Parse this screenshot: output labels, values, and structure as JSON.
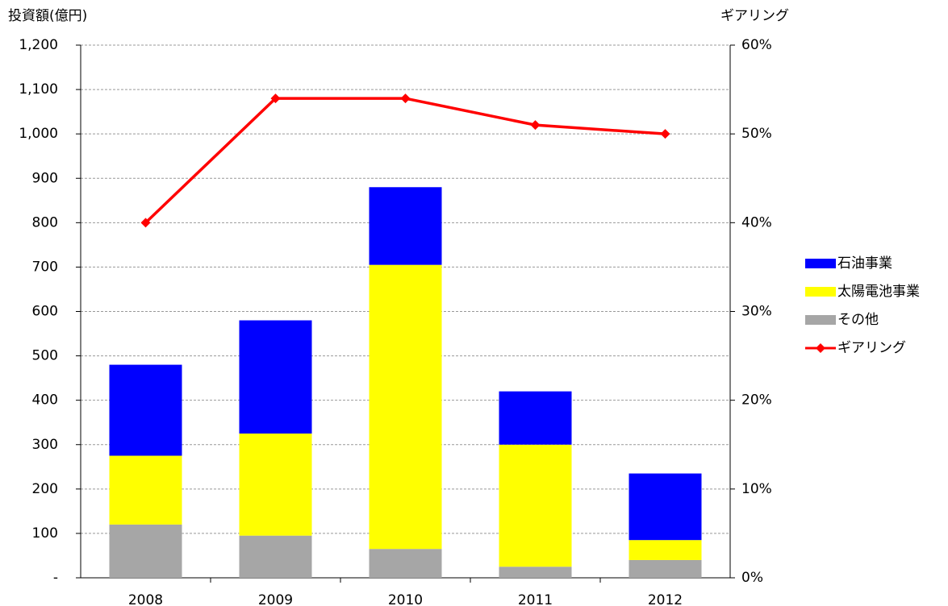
{
  "chart_data": {
    "type": "bar",
    "stacked": true,
    "y_title": "投資額(億円)",
    "y2_title": "ギアリング",
    "categories": [
      "2008",
      "2009",
      "2010",
      "2011",
      "2012"
    ],
    "series": [
      {
        "name": "石油事業",
        "color": "#0000ff",
        "values": [
          205,
          255,
          175,
          120,
          150
        ]
      },
      {
        "name": "太陽電池事業",
        "color": "#ffff00",
        "values": [
          155,
          230,
          640,
          275,
          45
        ]
      },
      {
        "name": "その他",
        "color": "#a6a6a6",
        "values": [
          120,
          95,
          65,
          25,
          40
        ]
      },
      {
        "name": "ギアリング",
        "color": "#ff0000",
        "type": "line",
        "axis": "y2",
        "values": [
          40,
          54,
          54,
          51,
          50
        ]
      }
    ],
    "ylim": [
      0,
      1200
    ],
    "yticks": [
      {
        "value": 0,
        "label": "-"
      },
      100,
      200,
      300,
      400,
      500,
      600,
      700,
      800,
      900,
      {
        "value": 1000,
        "label": "1,000"
      },
      {
        "value": 1100,
        "label": "1,100"
      },
      {
        "value": 1200,
        "label": "1,200"
      }
    ],
    "y2lim": [
      0,
      60
    ],
    "y2ticks": [
      {
        "value": 0,
        "label": "0%"
      },
      {
        "value": 10,
        "label": "10%"
      },
      {
        "value": 20,
        "label": "20%"
      },
      {
        "value": 30,
        "label": "30%"
      },
      {
        "value": 40,
        "label": "40%"
      },
      {
        "value": 50,
        "label": "50%"
      },
      {
        "value": 60,
        "label": "60%"
      }
    ],
    "grid": true,
    "legend": "right"
  }
}
